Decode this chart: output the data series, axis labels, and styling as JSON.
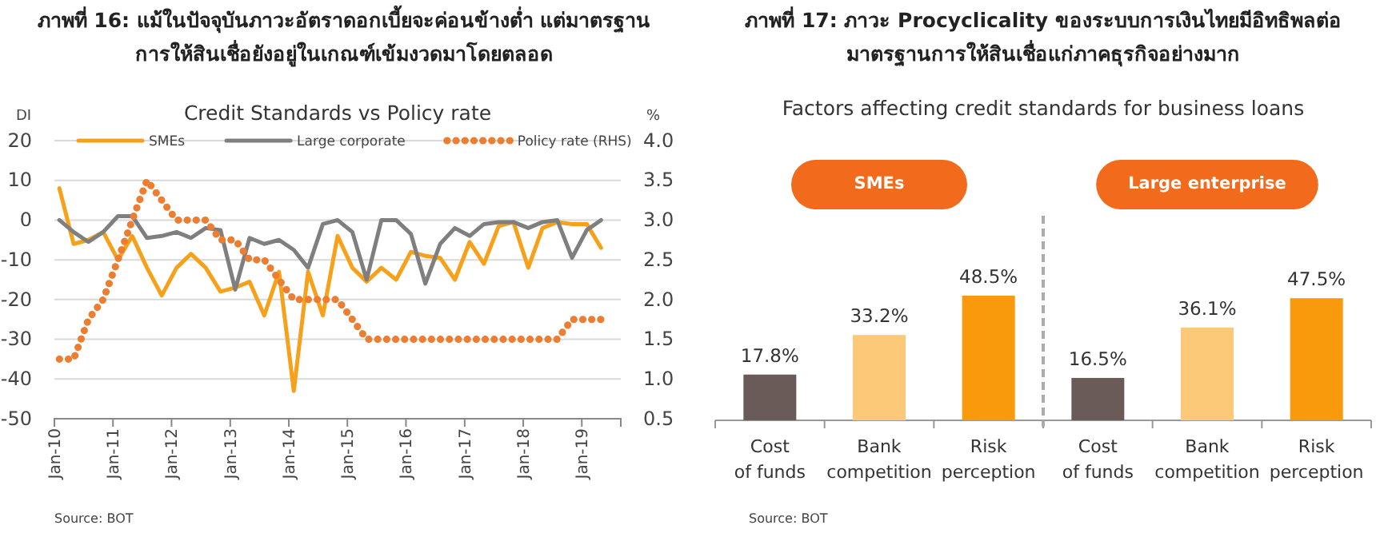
{
  "chart_data": [
    {
      "type": "line",
      "title": "ภาพที่ 16: แม้ในปัจจุบันภาวะอัตราดอกเบี้ยจะค่อนข้างต่ำ แต่มาตรฐาน\nการให้สินเชื่อยังอยู่ในเกณฑ์เข้มงวดมาโดยตลอด",
      "subtitle": "Credit Standards vs Policy rate",
      "ylabel": "DI",
      "y2label": "%",
      "x": [
        "2010-02",
        "2010-05",
        "2010-08",
        "2010-11",
        "2011-02",
        "2011-05",
        "2011-08",
        "2011-11",
        "2012-02",
        "2012-05",
        "2012-08",
        "2012-11",
        "2013-02",
        "2013-05",
        "2013-08",
        "2013-11",
        "2014-02",
        "2014-05",
        "2014-08",
        "2014-11",
        "2015-02",
        "2015-05",
        "2015-08",
        "2015-11",
        "2016-02",
        "2016-05",
        "2016-08",
        "2016-11",
        "2017-02",
        "2017-05",
        "2017-08",
        "2017-11",
        "2018-02",
        "2018-05",
        "2018-08",
        "2018-11",
        "2019-02",
        "2019-05"
      ],
      "series": [
        {
          "name": "SMEs",
          "color": "#f7a11a",
          "values": [
            8,
            -6,
            -5,
            -3,
            -10,
            -4,
            -12,
            -19,
            -12,
            -8.5,
            -12,
            -18,
            -17,
            -15.5,
            -24,
            -13,
            -43,
            -13,
            -24,
            -4,
            -12,
            -15.5,
            -12,
            -15,
            -8,
            -9,
            -9.5,
            -15,
            -5.5,
            -11,
            -1.5,
            -0.5,
            -12,
            -2,
            -0.5,
            -1,
            -1,
            -7
          ]
        },
        {
          "name": "Large corporate",
          "color": "#7f7f7f",
          "values": [
            0,
            -3,
            -5.5,
            -3,
            1,
            1,
            -4.5,
            -4,
            -3,
            -4.5,
            -2,
            -2.5,
            -17.5,
            -4.5,
            -6,
            -5,
            -7.5,
            -12,
            -1,
            0,
            -3,
            -15,
            0,
            0,
            -3.5,
            -16,
            -6,
            -2,
            -4,
            -1,
            -0.5,
            -0.5,
            -2,
            -0.5,
            0,
            -9.5,
            -2.5,
            0
          ]
        },
        {
          "name": "Policy rate (RHS)",
          "color": "#ed7d31",
          "axis": "y2",
          "line_style": "dotted",
          "values": [
            1.25,
            1.25,
            1.75,
            2.0,
            2.5,
            3.0,
            3.5,
            3.25,
            3.0,
            3.0,
            3.0,
            2.75,
            2.75,
            2.5,
            2.5,
            2.25,
            2.0,
            2.0,
            2.0,
            2.0,
            1.75,
            1.5,
            1.5,
            1.5,
            1.5,
            1.5,
            1.5,
            1.5,
            1.5,
            1.5,
            1.5,
            1.5,
            1.5,
            1.5,
            1.5,
            1.75,
            1.75,
            1.75
          ]
        }
      ],
      "xlim": [
        "2010-01-01",
        "2019-09"
      ],
      "xticks": [
        {
          "value": "2010-01-01",
          "label": "Jan-10"
        },
        {
          "value": "2011-01-01",
          "label": "Jan-11"
        },
        {
          "value": "2012-01-01",
          "label": "Jan-12"
        },
        {
          "value": "2013-01-01",
          "label": "Jan-13"
        },
        {
          "value": "2014-01-01",
          "label": "Jan-14"
        },
        {
          "value": "2015-01-01",
          "label": "Jan-15"
        },
        {
          "value": "2016-01-01",
          "label": "Jan-16"
        },
        {
          "value": "2017-01-01",
          "label": "Jan-17"
        },
        {
          "value": "2018-01-01",
          "label": "Jan-18"
        },
        {
          "value": "2019-01-01",
          "label": "Jan-19"
        }
      ],
      "ylim": [
        -50,
        20
      ],
      "yticks": [
        -50,
        -40,
        -30,
        -20,
        -10,
        0,
        10,
        20
      ],
      "y2lim": [
        0.5,
        4
      ],
      "y2ticks": [
        0.5,
        {
          "value": 1,
          "label": "1.0"
        },
        1.5,
        {
          "value": 2,
          "label": "2.0"
        },
        2.5,
        {
          "value": 3,
          "label": "3.0"
        },
        3.5,
        {
          "value": 4,
          "label": "4.0"
        }
      ],
      "grid": "y",
      "legend": "top",
      "line_style": "solid",
      "marker": "none",
      "annotations": [
        "Source: BOT"
      ]
    },
    {
      "type": "bar",
      "title": "ภาพที่ 17: ภาวะ Procyclicality ของระบบการเงินไทยมีอิทธิพลต่อ\nมาตรฐานการให้สินเชื่อแก่ภาคธุรกิจอย่างมาก",
      "subtitle": "Factors affecting credit standards for business loans",
      "categories": [
        "Cost of funds",
        "Bank competition",
        "Risk perception",
        "Cost of funds",
        "Bank competition",
        "Risk perception"
      ],
      "values": [
        17.8,
        33.2,
        48.5,
        16.5,
        36.1,
        47.5
      ],
      "colors": [
        "#6b5b58",
        "#fbc978",
        "#f89a0c",
        "#6b5b58",
        "#fbc978",
        "#f89a0c"
      ],
      "value_labels": [
        "17.8%",
        "33.2%",
        "48.5%",
        "16.5%",
        "36.1%",
        "47.5%"
      ],
      "annotations": [
        "SMEs",
        "Large enterprise",
        "Source: BOT"
      ]
    }
  ]
}
